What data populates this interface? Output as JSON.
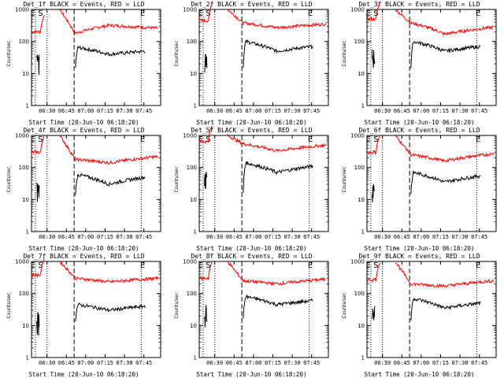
{
  "chart_data": [
    {
      "type": "line",
      "title": "Det_1f BLACK = Events, RED = LLD",
      "ylabel": "Counts/sec",
      "xlabel": "Start Time (20-Jun-10 06:18:20)",
      "x_ticks": [
        "06:30",
        "06:45",
        "07:00",
        "07:15",
        "07:30",
        "07:45"
      ],
      "y_ticks": [
        "1",
        "10",
        "100",
        "1000"
      ],
      "ylim": [
        1,
        1000
      ],
      "yscale": "log",
      "annotations": [
        "E",
        "S",
        "E"
      ],
      "series": [
        {
          "name": "LLD",
          "color": "#ff0000",
          "profile": "hump",
          "level": [
            200,
            180,
            320,
            260
          ]
        },
        {
          "name": "Events",
          "color": "#000000",
          "profile": "hump",
          "level": [
            65,
            55,
            40,
            50
          ]
        }
      ]
    },
    {
      "type": "line",
      "title": "Det_2f BLACK = Events, RED = LLD",
      "ylabel": "Counts/sec",
      "xlabel": "Start Time (20-Jun-10 06:18:20)",
      "x_ticks": [
        "06:30",
        "06:45",
        "07:00",
        "07:15",
        "07:30",
        "07:45"
      ],
      "y_ticks": [
        "1",
        "10",
        "100",
        "1000"
      ],
      "ylim": [
        1,
        1000
      ],
      "yscale": "log",
      "annotations": [
        "E",
        "S",
        "E"
      ],
      "series": [
        {
          "name": "LLD",
          "color": "#ff0000",
          "level": [
            450,
            380,
            270,
            350
          ]
        },
        {
          "name": "Events",
          "color": "#000000",
          "level": [
            100,
            80,
            50,
            70
          ]
        }
      ]
    },
    {
      "type": "line",
      "title": "Det_3f BLACK = Events, RED = LLD",
      "ylabel": "Counts/sec",
      "xlabel": "Start Time (20-Jun-10 06:18:20)",
      "x_ticks": [
        "06:30",
        "06:45",
        "07:00",
        "07:15",
        "07:30",
        "07:45"
      ],
      "y_ticks": [
        "1",
        "10",
        "100",
        "1000"
      ],
      "ylim": [
        1,
        1000
      ],
      "yscale": "log",
      "annotations": [
        "E",
        "S",
        "E"
      ],
      "series": [
        {
          "name": "LLD",
          "color": "#ff0000",
          "level": [
            500,
            380,
            170,
            280
          ]
        },
        {
          "name": "Events",
          "color": "#000000",
          "level": [
            100,
            80,
            50,
            70
          ]
        }
      ]
    },
    {
      "type": "line",
      "title": "Det_4f BLACK = Events, RED = LLD",
      "ylabel": "Counts/sec",
      "xlabel": "Start Time (20-Jun-10 06:18:20)",
      "x_ticks": [
        "06:30",
        "06:45",
        "07:00",
        "07:15",
        "07:30",
        "07:45"
      ],
      "y_ticks": [
        "1",
        "10",
        "100",
        "1000"
      ],
      "ylim": [
        1,
        1000
      ],
      "yscale": "log",
      "annotations": [
        "E",
        "S",
        "E"
      ],
      "series": [
        {
          "name": "LLD",
          "color": "#ff0000",
          "level": [
            300,
            180,
            140,
            220
          ]
        },
        {
          "name": "Events",
          "color": "#000000",
          "level": [
            60,
            40,
            30,
            50
          ]
        }
      ]
    },
    {
      "type": "line",
      "title": "Det_5f BLACK = Events, RED = LLD",
      "ylabel": "Counts/sec",
      "xlabel": "Start Time (20-Jun-10 06:18:20)",
      "x_ticks": [
        "06:30",
        "06:45",
        "07:00",
        "07:15",
        "07:30",
        "07:45"
      ],
      "y_ticks": [
        "1",
        "10",
        "100",
        "1000"
      ],
      "ylim": [
        1,
        1000
      ],
      "yscale": "log",
      "annotations": [
        "E",
        "S",
        "E"
      ],
      "series": [
        {
          "name": "LLD",
          "color": "#ff0000",
          "level": [
            650,
            550,
            330,
            500
          ]
        },
        {
          "name": "Events",
          "color": "#000000",
          "level": [
            140,
            90,
            70,
            110
          ]
        }
      ]
    },
    {
      "type": "line",
      "title": "Det_6f BLACK = Events, RED = LLD",
      "ylabel": "Counts/sec",
      "xlabel": "Start Time (20-Jun-10 06:18:20)",
      "x_ticks": [
        "06:30",
        "06:45",
        "07:00",
        "07:15",
        "07:30",
        "07:45"
      ],
      "y_ticks": [
        "1",
        "10",
        "100",
        "1000"
      ],
      "ylim": [
        1,
        1000
      ],
      "yscale": "log",
      "annotations": [
        "E",
        "S",
        "E"
      ],
      "series": [
        {
          "name": "LLD",
          "color": "#ff0000",
          "level": [
            300,
            250,
            160,
            270
          ]
        },
        {
          "name": "Events",
          "color": "#000000",
          "level": [
            70,
            50,
            35,
            55
          ]
        }
      ]
    },
    {
      "type": "line",
      "title": "Det_7f BLACK = Events, RED = LLD",
      "ylabel": "Counts/sec",
      "xlabel": "Start Time (20-Jun-10 06:18:20)",
      "x_ticks": [
        "06:30",
        "06:45",
        "07:00",
        "07:15",
        "07:30",
        "07:45"
      ],
      "y_ticks": [
        "1",
        "10",
        "100",
        "1000"
      ],
      "ylim": [
        1,
        1000
      ],
      "yscale": "log",
      "annotations": [
        "E",
        "S",
        "E"
      ],
      "series": [
        {
          "name": "LLD",
          "color": "#ff0000",
          "level": [
            380,
            300,
            230,
            300
          ]
        },
        {
          "name": "Events",
          "color": "#000000",
          "level": [
            45,
            35,
            30,
            40
          ]
        }
      ]
    },
    {
      "type": "line",
      "title": "Det_8f BLACK = Events, RED = LLD",
      "ylabel": "Counts/sec",
      "xlabel": "Start Time (20-Jun-10 06:18:20)",
      "x_ticks": [
        "06:30",
        "06:45",
        "07:00",
        "07:15",
        "07:30",
        "07:45"
      ],
      "y_ticks": [
        "1",
        "10",
        "100",
        "1000"
      ],
      "ylim": [
        1,
        1000
      ],
      "yscale": "log",
      "annotations": [
        "E",
        "S",
        "E"
      ],
      "series": [
        {
          "name": "LLD",
          "color": "#ff0000",
          "level": [
            300,
            250,
            200,
            280
          ]
        },
        {
          "name": "Events",
          "color": "#000000",
          "level": [
            80,
            60,
            45,
            60
          ]
        }
      ]
    },
    {
      "type": "line",
      "title": "Det_9f BLACK = Events, RED = LLD",
      "ylabel": "Counts/sec",
      "xlabel": "Start Time (20-Jun-10 06:18:20)",
      "x_ticks": [
        "06:30",
        "06:45",
        "07:00",
        "07:15",
        "07:30",
        "07:45"
      ],
      "y_ticks": [
        "1",
        "10",
        "100",
        "1000"
      ],
      "ylim": [
        1,
        1000
      ],
      "yscale": "log",
      "annotations": [
        "E",
        "S",
        "E"
      ],
      "series": [
        {
          "name": "LLD",
          "color": "#ff0000",
          "level": [
            270,
            200,
            170,
            250
          ]
        },
        {
          "name": "Events",
          "color": "#000000",
          "level": [
            70,
            50,
            35,
            50
          ]
        }
      ]
    }
  ]
}
